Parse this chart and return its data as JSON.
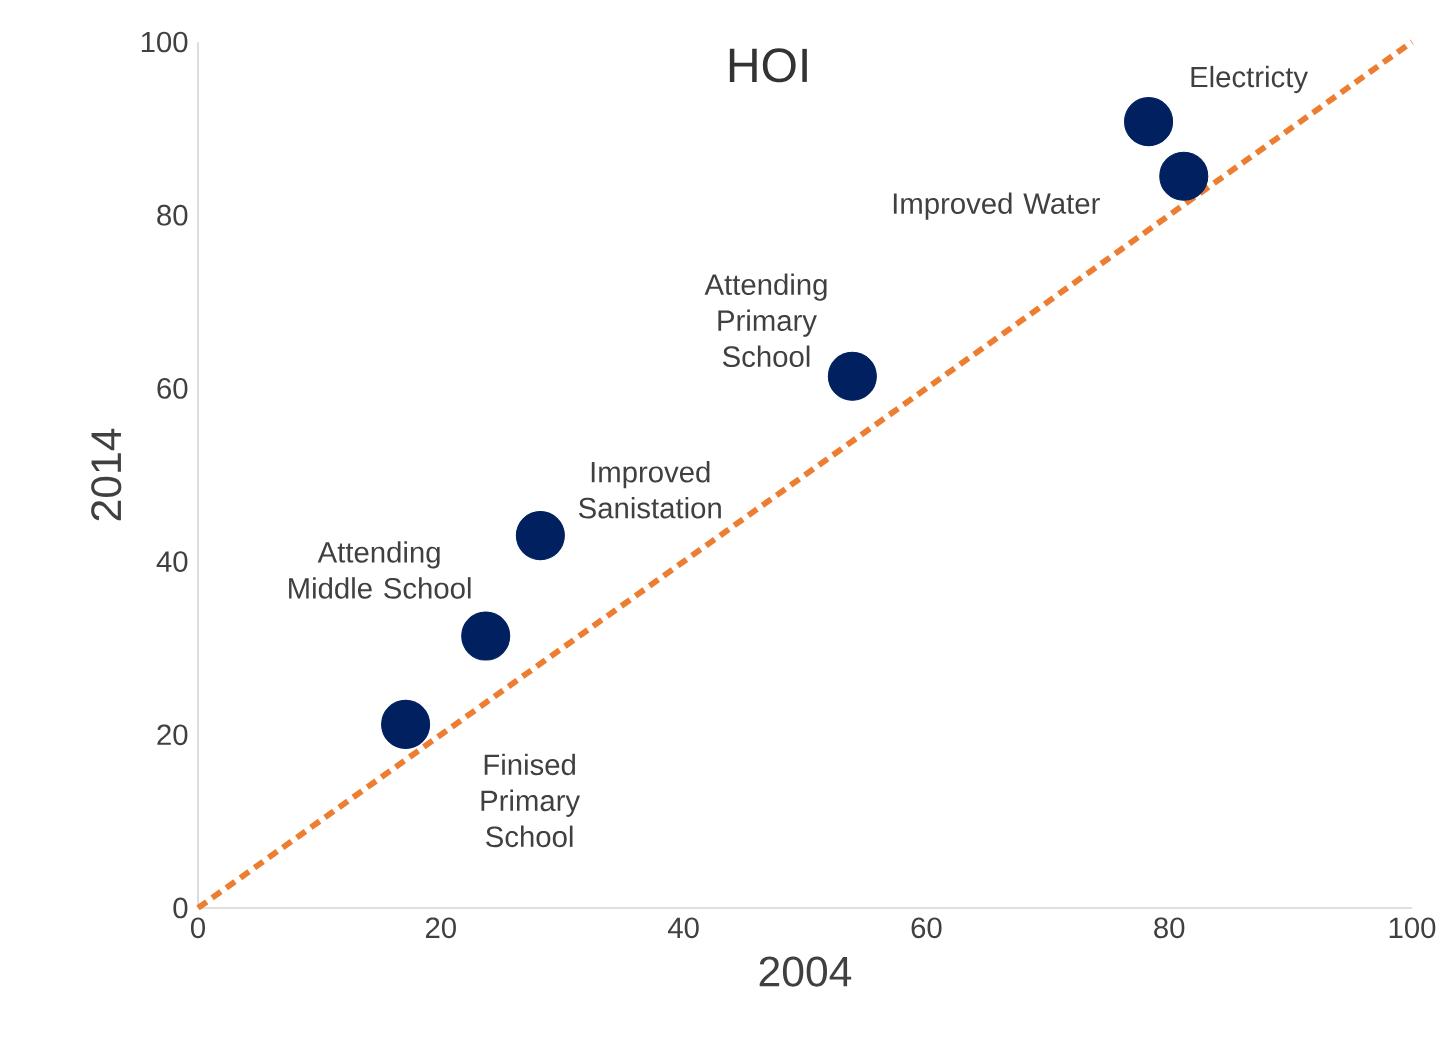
{
  "chart_data": {
    "type": "scatter",
    "title": "HOI",
    "xlabel": "2004",
    "ylabel": "2014",
    "xlim": [
      0,
      100
    ],
    "ylim": [
      0,
      100
    ],
    "xticks": [
      0,
      20,
      40,
      60,
      80,
      100
    ],
    "yticks": [
      0,
      20,
      40,
      60,
      80,
      100
    ],
    "series": [
      {
        "color": "#002060",
        "x": [
          17.1,
          23.7,
          28.2,
          53.9,
          78.3,
          81.2
        ],
        "values": [
          21.2,
          31.4,
          43.0,
          61.4,
          90.8,
          84.5
        ]
      },
      {
        "type": "line",
        "color": "#ed7d31",
        "line_style": "dashed",
        "marker": "none",
        "x": [
          0,
          100
        ],
        "values": [
          0,
          100
        ]
      }
    ],
    "annotations": [
      {
        "text": "Finised Primary School",
        "x": 17.1,
        "y": 21.2
      },
      {
        "text": "Attending Middle School",
        "x": 23.7,
        "y": 31.4
      },
      {
        "text": "Improved Sanistation",
        "x": 28.2,
        "y": 43.0
      },
      {
        "text": "Attending Primary School",
        "x": 53.9,
        "y": 61.4
      },
      {
        "text": "Electricty",
        "x": 78.3,
        "y": 90.8
      },
      {
        "text": "Improved Water",
        "x": 81.2,
        "y": 84.5
      }
    ]
  }
}
